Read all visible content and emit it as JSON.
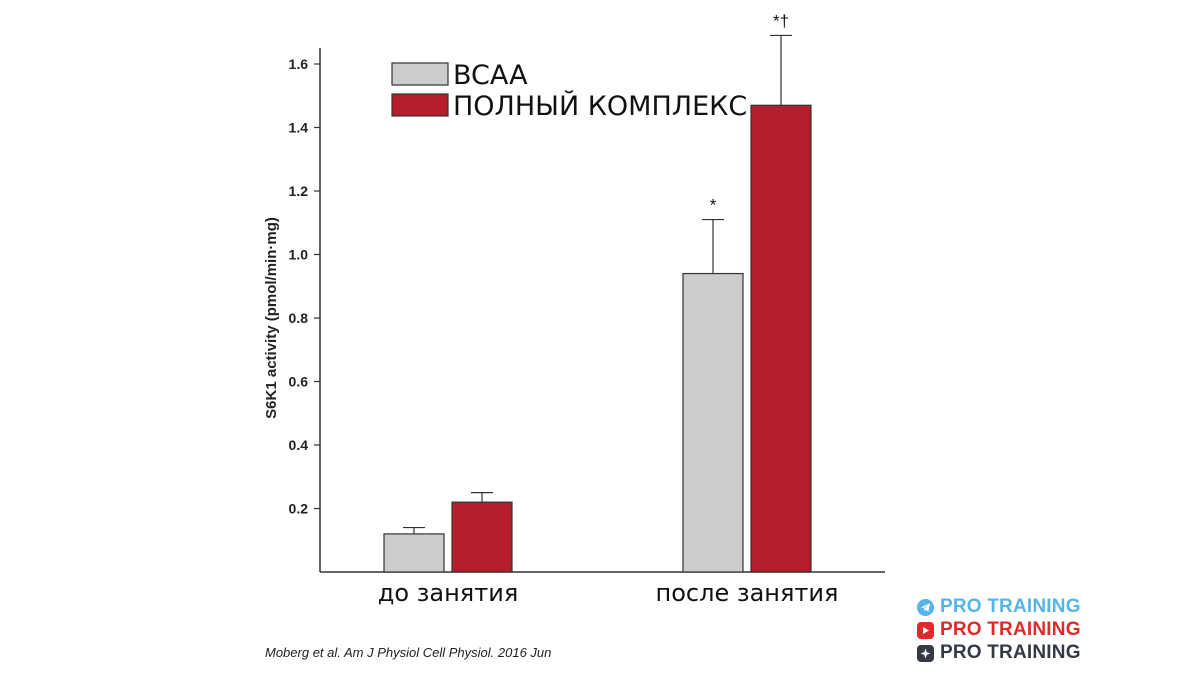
{
  "chart_data": {
    "type": "bar",
    "categories": [
      "до занятия",
      "после занятия"
    ],
    "series": [
      {
        "name": "BCAA",
        "color": "#cccccc",
        "values": [
          0.12,
          0.94
        ],
        "errors": [
          0.02,
          0.17
        ]
      },
      {
        "name": "ПОЛНЫЙ КОМПЛЕКС",
        "color": "#b31e2a",
        "values": [
          0.22,
          1.47
        ],
        "errors": [
          0.03,
          0.22
        ]
      }
    ],
    "annotations": [
      {
        "series": 0,
        "category": 1,
        "text": "*"
      },
      {
        "series": 1,
        "category": 1,
        "text": "*†"
      }
    ],
    "title": "",
    "xlabel": "",
    "ylabel": "S6K1 activity (pmol/min·mg)",
    "ylim": [
      0,
      1.6
    ],
    "yticks": [
      0.2,
      0.4,
      0.6,
      0.8,
      1.0,
      1.2,
      1.4,
      1.6
    ],
    "ytick_labels": [
      "0.2",
      "0.4",
      "0.6",
      "0.8",
      "1.0",
      "1.2",
      "1.4",
      "1.6"
    ],
    "grid": false,
    "legend_position": "top-left"
  },
  "source": "Moberg et al. Am J Physiol Cell Physiol. 2016 Jun",
  "branding": [
    {
      "icon": "telegram-icon",
      "text": "PRO TRAINING",
      "color": "#55b4e8"
    },
    {
      "icon": "youtube-icon",
      "text": "PRO TRAINING",
      "color": "#e02a2a"
    },
    {
      "icon": "compass-icon",
      "text": "PRO TRAINING",
      "color": "#333a44"
    }
  ]
}
